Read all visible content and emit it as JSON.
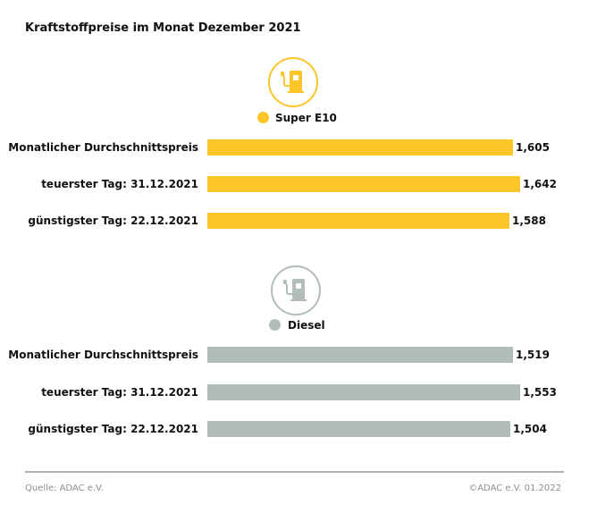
{
  "chart_data": {
    "type": "bar",
    "orientation": "horizontal",
    "title": "Kraftstoffpreise im Monat Dezember 2021",
    "categories": [
      "Monatlicher Durchschnittspreis",
      "teuerster Tag: 31.12.2021",
      "günstigster Tag: 22.12.2021"
    ],
    "groups": [
      {
        "name": "Super E10",
        "color": "#fcc52a",
        "icon": "fuel-pump-icon",
        "values": [
          1.605,
          1.642,
          1.588
        ],
        "value_labels": [
          "1,605",
          "1,642",
          "1,588"
        ]
      },
      {
        "name": "Diesel",
        "color": "#b2bdbb",
        "icon": "fuel-pump-icon",
        "values": [
          1.519,
          1.553,
          1.504
        ],
        "value_labels": [
          "1,519",
          "1,553",
          "1,504"
        ]
      }
    ]
  },
  "footer": {
    "source": "Quelle: ADAC e.V.",
    "copyright": "©ADAC e.V. 01.2022"
  }
}
